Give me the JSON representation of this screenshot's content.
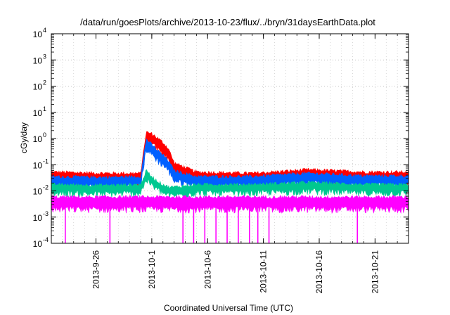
{
  "chart_data": {
    "type": "line",
    "title": "/data/run/goesPlots/archive/2013-10-23/flux/../bryn/31daysEarthData.plot",
    "xlabel": "Coordinated Universal Time (UTC)",
    "ylabel": "cGy/day",
    "y_scale": "log",
    "ylim": [
      0.0001,
      10000
    ],
    "xlim": [
      "2013-09-22",
      "2013-10-24"
    ],
    "y_ticks": [
      {
        "base": "10",
        "exp": "-4"
      },
      {
        "base": "10",
        "exp": "-3"
      },
      {
        "base": "10",
        "exp": "-2"
      },
      {
        "base": "10",
        "exp": "-1"
      },
      {
        "base": "10",
        "exp": "0"
      },
      {
        "base": "10",
        "exp": "1"
      },
      {
        "base": "10",
        "exp": "2"
      },
      {
        "base": "10",
        "exp": "3"
      },
      {
        "base": "10",
        "exp": "4"
      }
    ],
    "x_ticks": [
      "2013-9-26",
      "2013-10-1",
      "2013-10-6",
      "2013-10-11",
      "2013-10-16",
      "2013-10-21"
    ],
    "grid": true,
    "legend": "none",
    "series": [
      {
        "color": "#ff0000",
        "x": [
          "2013-09-22",
          "2013-09-27",
          "2013-09-30",
          "2013-09-30T12:00",
          "2013-10-01",
          "2013-10-01T12:00",
          "2013-10-02",
          "2013-10-02T12:00",
          "2013-10-03",
          "2013-10-05",
          "2013-10-10",
          "2013-10-15",
          "2013-10-20",
          "2013-10-24"
        ],
        "values": [
          0.045,
          0.04,
          0.04,
          1.5,
          1.3,
          0.9,
          0.6,
          0.35,
          0.1,
          0.045,
          0.04,
          0.055,
          0.045,
          0.045
        ]
      },
      {
        "color": "#0060ff",
        "x": [
          "2013-09-22",
          "2013-09-27",
          "2013-09-30",
          "2013-09-30T12:00",
          "2013-10-01",
          "2013-10-01T12:00",
          "2013-10-02",
          "2013-10-02T12:00",
          "2013-10-03",
          "2013-10-05",
          "2013-10-10",
          "2013-10-15",
          "2013-10-20",
          "2013-10-24"
        ],
        "values": [
          0.03,
          0.028,
          0.03,
          0.8,
          0.5,
          0.3,
          0.2,
          0.12,
          0.05,
          0.03,
          0.03,
          0.04,
          0.032,
          0.032
        ]
      },
      {
        "color": "#00c890",
        "x": [
          "2013-09-22",
          "2013-09-27",
          "2013-09-30",
          "2013-09-30T12:00",
          "2013-10-01",
          "2013-10-01T12:00",
          "2013-10-02",
          "2013-10-02T12:00",
          "2013-10-03",
          "2013-10-05",
          "2013-10-10",
          "2013-10-15",
          "2013-10-20",
          "2013-10-24"
        ],
        "values": [
          0.015,
          0.014,
          0.015,
          0.05,
          0.03,
          0.02,
          0.015,
          0.012,
          0.012,
          0.015,
          0.015,
          0.018,
          0.015,
          0.015
        ]
      },
      {
        "color": "#ff00ff",
        "x": [
          "2013-09-22",
          "2013-10-24"
        ],
        "values": [
          0.005,
          0.005
        ]
      }
    ]
  }
}
